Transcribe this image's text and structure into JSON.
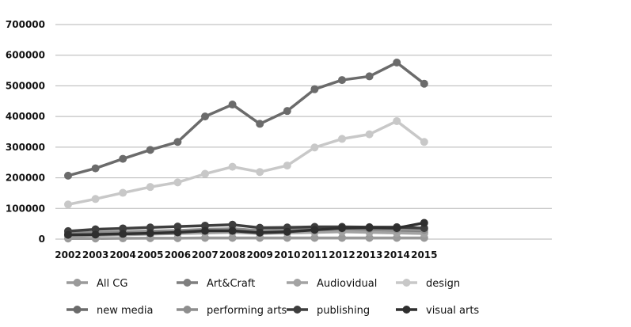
{
  "chart_data": {
    "type": "line",
    "title": "",
    "xlabel": "",
    "ylabel": "",
    "x": [
      2002,
      2003,
      2004,
      2005,
      2006,
      2007,
      2008,
      2009,
      2010,
      2011,
      2012,
      2013,
      2014,
      2015
    ],
    "x_tick_labels": [
      "2002",
      "2003",
      "2004",
      "2005",
      "2006",
      "2007",
      "2008",
      "2009",
      "2010",
      "2011",
      "2012",
      "2013",
      "2014",
      "2015"
    ],
    "ylim": [
      0,
      700000
    ],
    "y_ticks": [
      0,
      100000,
      200000,
      300000,
      400000,
      500000,
      600000,
      700000
    ],
    "y_tick_labels": [
      "0",
      "100000",
      "200000",
      "300000",
      "400000",
      "500000",
      "600000",
      "700000"
    ],
    "grid": "horizontal",
    "legend_position": "bottom",
    "series": [
      {
        "name": "All CG",
        "color": "#9a9a9a",
        "values": [
          2000,
          2000,
          2500,
          3000,
          3000,
          4000,
          4000,
          4000,
          4000,
          4000,
          4000,
          4000,
          4000,
          4000
        ]
      },
      {
        "name": "Art&Craft",
        "color": "#7f7f7f",
        "values": [
          16000,
          18000,
          20000,
          22000,
          24000,
          26000,
          28000,
          22000,
          22000,
          24000,
          25000,
          24000,
          23000,
          22000
        ]
      },
      {
        "name": "Audiovidual",
        "color": "#a3a3a3",
        "values": [
          10000,
          12000,
          14000,
          16000,
          18000,
          20000,
          22000,
          18000,
          20000,
          22000,
          24000,
          22000,
          20000,
          18000
        ]
      },
      {
        "name": "design",
        "color": "#c8c8c8",
        "values": [
          113000,
          131000,
          151000,
          170000,
          185000,
          213000,
          236000,
          219000,
          240000,
          299000,
          327000,
          342000,
          385000,
          317000
        ]
      },
      {
        "name": "new media",
        "color": "#6b6b6b",
        "values": [
          207000,
          231000,
          262000,
          291000,
          317000,
          400000,
          439000,
          376000,
          418000,
          489000,
          519000,
          531000,
          576000,
          507000
        ]
      },
      {
        "name": "performing arts",
        "color": "#8e8e8e",
        "values": [
          20000,
          22000,
          24000,
          26000,
          28000,
          32000,
          34000,
          28000,
          30000,
          32000,
          34000,
          33000,
          32000,
          30000
        ]
      },
      {
        "name": "publishing",
        "color": "#3e3e3e",
        "values": [
          26000,
          32000,
          35000,
          38000,
          41000,
          44000,
          47000,
          37000,
          38000,
          40000,
          40000,
          39000,
          39000,
          36000
        ]
      },
      {
        "name": "visual arts",
        "color": "#2f2f2f",
        "values": [
          14000,
          15000,
          17000,
          19000,
          22000,
          27000,
          27000,
          21000,
          24000,
          30000,
          36000,
          37000,
          36000,
          53000
        ]
      }
    ]
  }
}
